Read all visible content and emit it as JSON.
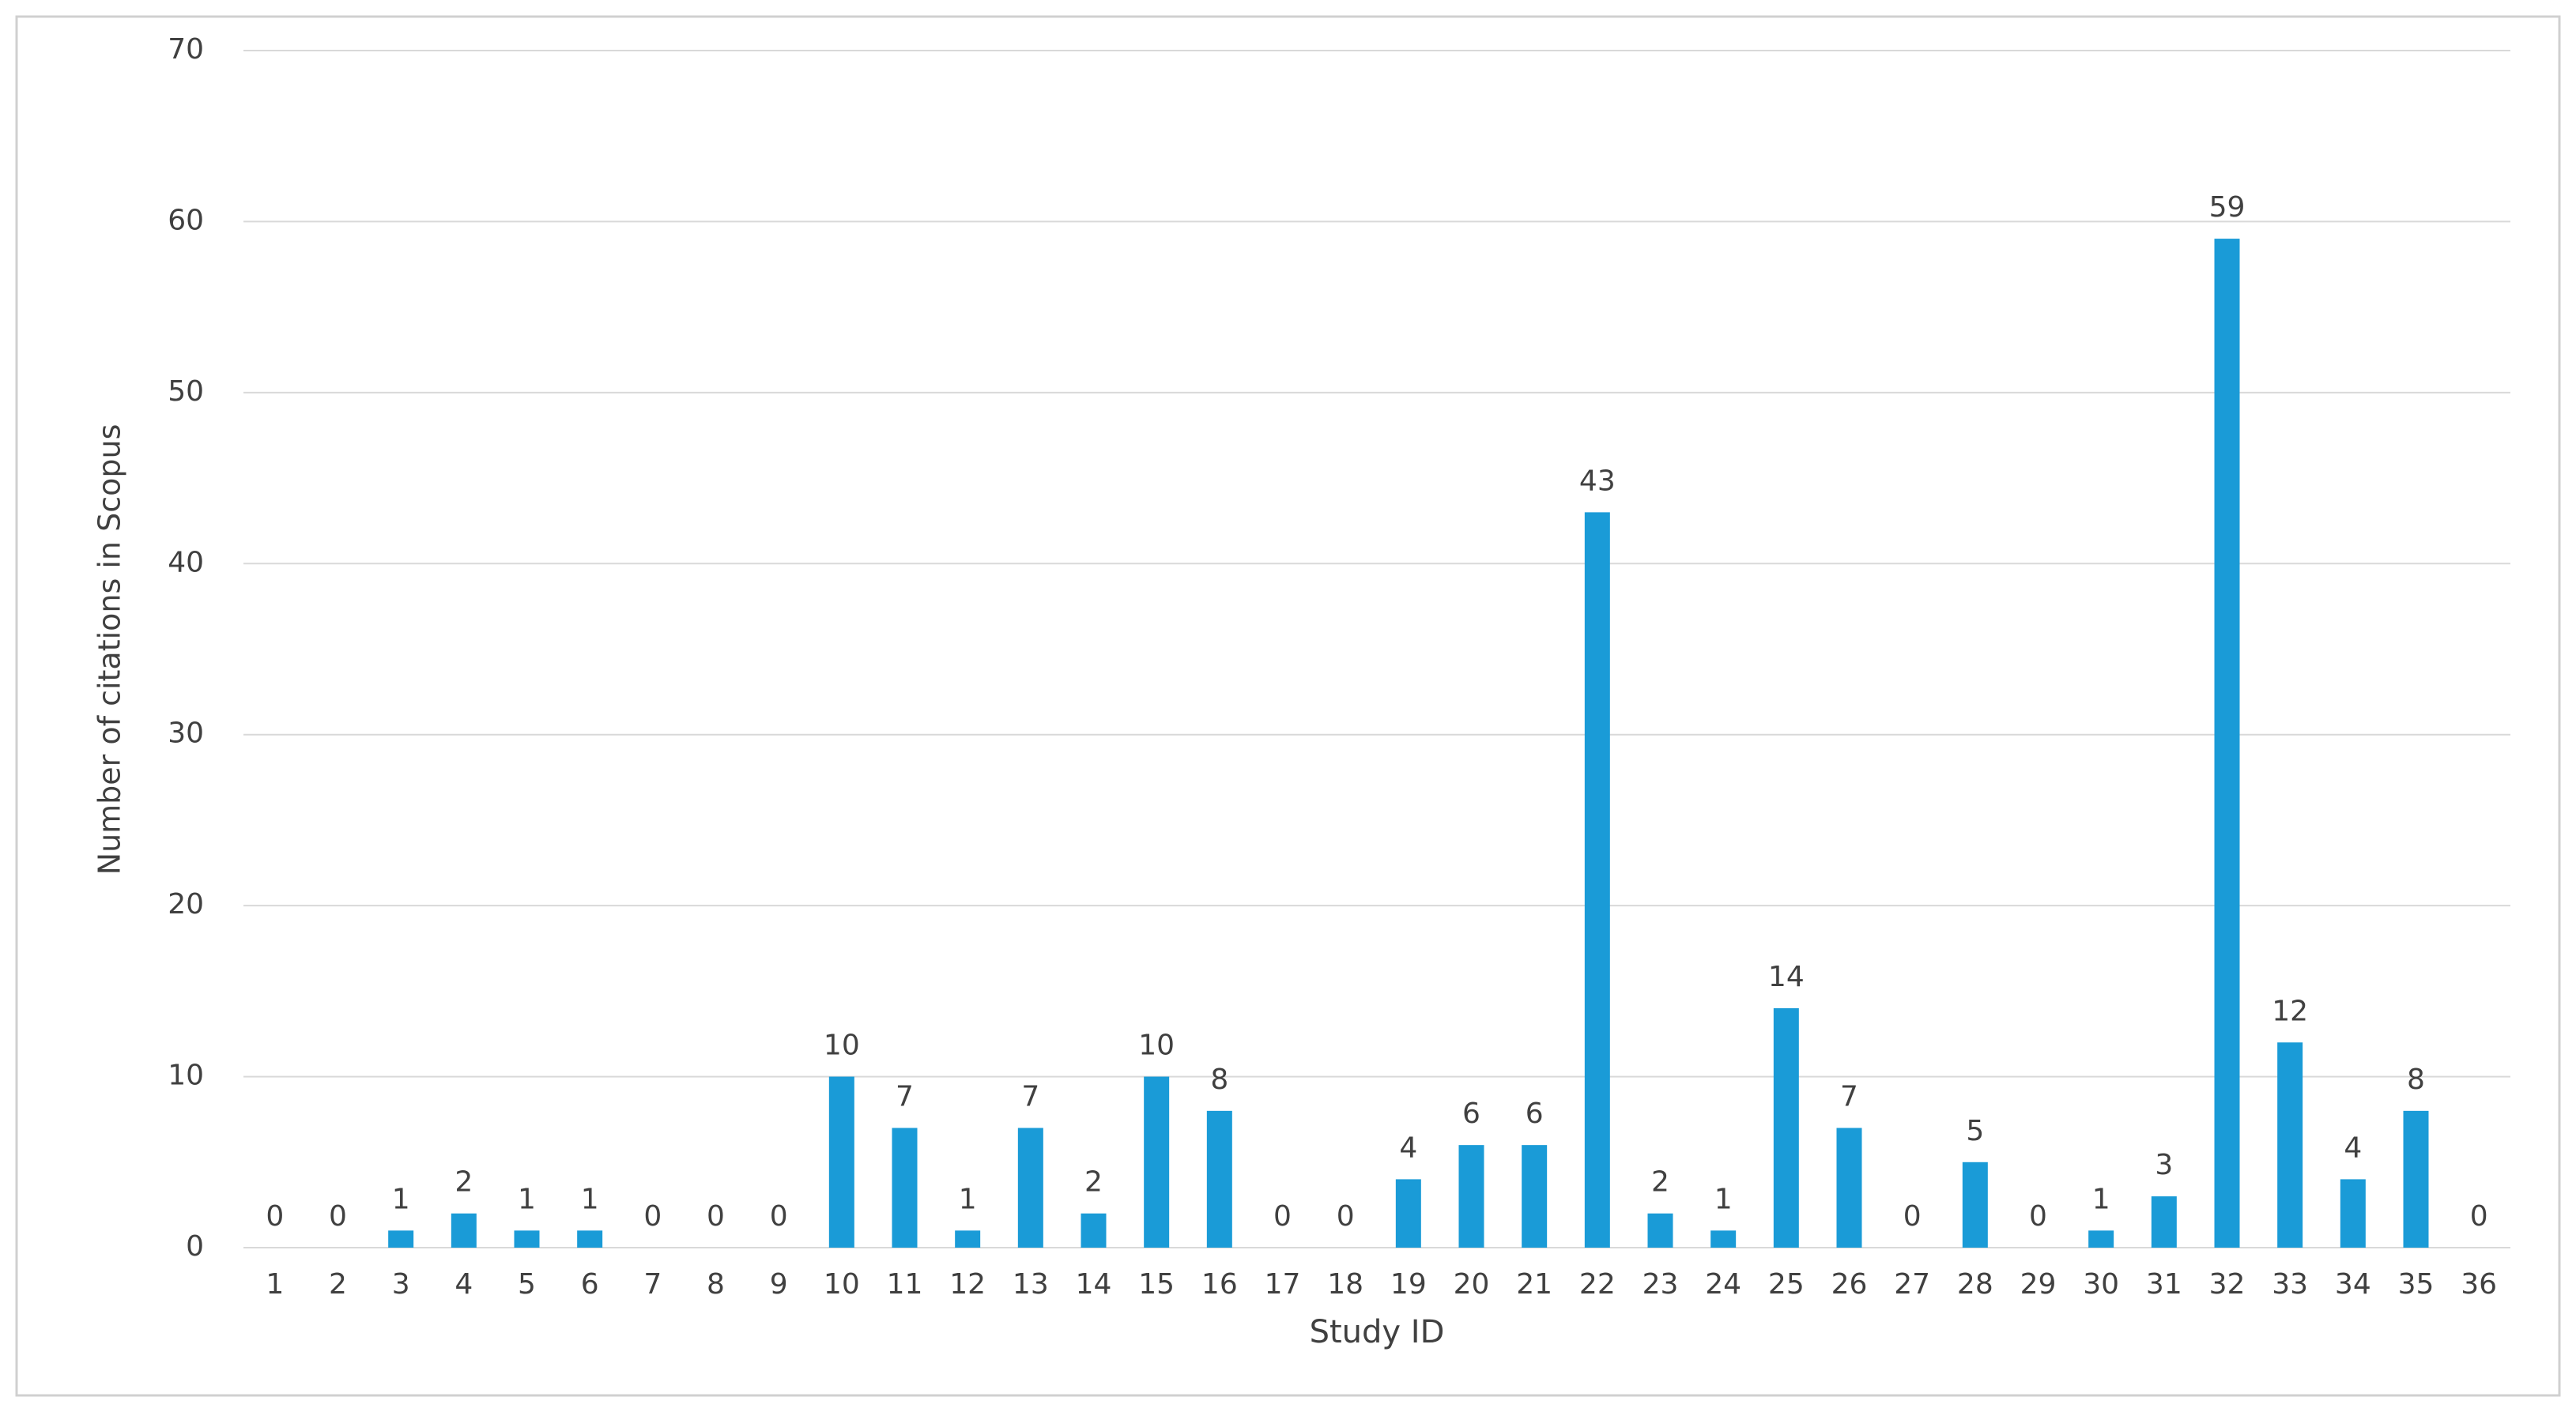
{
  "chart_data": {
    "type": "bar",
    "x_label": "Study ID",
    "y_label": "Number of citations in Scopus",
    "categories": [
      "1",
      "2",
      "3",
      "4",
      "5",
      "6",
      "7",
      "8",
      "9",
      "10",
      "11",
      "12",
      "13",
      "14",
      "15",
      "16",
      "17",
      "18",
      "19",
      "20",
      "21",
      "22",
      "23",
      "24",
      "25",
      "26",
      "27",
      "28",
      "29",
      "30",
      "31",
      "32",
      "33",
      "34",
      "35",
      "36"
    ],
    "values": [
      0,
      0,
      1,
      2,
      1,
      1,
      0,
      0,
      0,
      10,
      7,
      1,
      7,
      2,
      10,
      8,
      0,
      0,
      4,
      6,
      6,
      43,
      2,
      1,
      14,
      7,
      0,
      5,
      0,
      1,
      3,
      59,
      12,
      4,
      8,
      0
    ],
    "color": "#1a9bd7",
    "ylim": [
      0,
      70
    ],
    "yticks": [
      0,
      10,
      20,
      30,
      40,
      50,
      60,
      70
    ],
    "grid": true
  }
}
